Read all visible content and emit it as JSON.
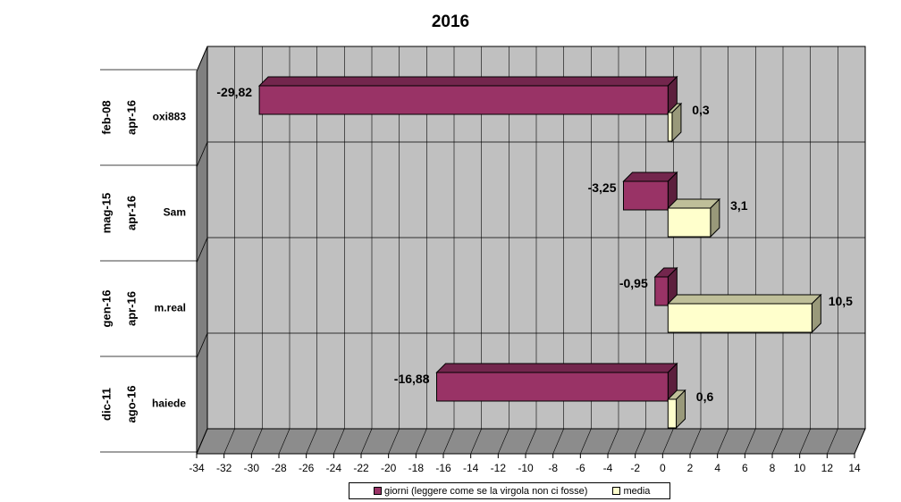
{
  "chart_data": {
    "type": "bar",
    "orientation": "horizontal",
    "title": "2016",
    "xlim": [
      -34,
      14
    ],
    "x_ticks": [
      "-34",
      "-32",
      "-30",
      "-28",
      "-26",
      "-24",
      "-22",
      "-20",
      "-18",
      "-16",
      "-14",
      "-12",
      "-10",
      "-8",
      "-6",
      "-4",
      "-2",
      "0",
      "2",
      "4",
      "6",
      "8",
      "10",
      "12",
      "14"
    ],
    "grid": true,
    "legend_position": "bottom",
    "categories": [
      {
        "labels": [
          "feb-08",
          "apr-16",
          "oxi883"
        ]
      },
      {
        "labels": [
          "mag-15",
          "apr-16",
          "Sam"
        ]
      },
      {
        "labels": [
          "gen-16",
          "apr-16",
          "m.real"
        ]
      },
      {
        "labels": [
          "dic-11",
          "ago-16",
          "haiede"
        ]
      }
    ],
    "series": [
      {
        "name": "giorni (leggere come se la virgola non ci fosse)",
        "color": "#993366",
        "values": [
          -29.82,
          -3.25,
          -0.95,
          -16.88
        ],
        "value_labels": [
          "-29,82",
          "-3,25",
          "-0,95",
          "-16,88"
        ]
      },
      {
        "name": "media",
        "color": "#FFFFCC",
        "values": [
          0.3,
          3.1,
          10.5,
          0.6
        ],
        "value_labels": [
          "0,3",
          "3,1",
          "10,5",
          "0,6"
        ]
      }
    ]
  }
}
